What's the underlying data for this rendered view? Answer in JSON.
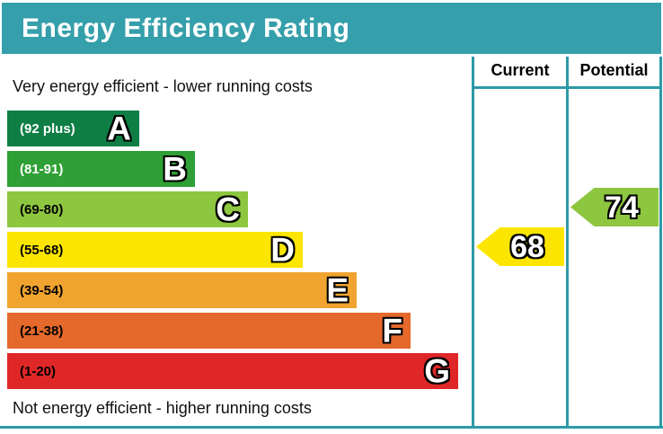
{
  "title": "Energy Efficiency Rating",
  "header": {
    "current": "Current",
    "potential": "Potential"
  },
  "captions": {
    "top": "Very energy efficient - lower running costs",
    "bottom": "Not energy efficient - higher running costs"
  },
  "bands": [
    {
      "letter": "A",
      "range": "(92 plus)",
      "min": 92,
      "max": 100,
      "color": "#0f7e45"
    },
    {
      "letter": "B",
      "range": "(81-91)",
      "min": 81,
      "max": 91,
      "color": "#2fa036"
    },
    {
      "letter": "C",
      "range": "(69-80)",
      "min": 69,
      "max": 80,
      "color": "#8dc63f"
    },
    {
      "letter": "D",
      "range": "(55-68)",
      "min": 55,
      "max": 68,
      "color": "#fce500"
    },
    {
      "letter": "E",
      "range": "(39-54)",
      "min": 39,
      "max": 54,
      "color": "#f0a42f"
    },
    {
      "letter": "F",
      "range": "(21-38)",
      "min": 21,
      "max": 38,
      "color": "#e4692b"
    },
    {
      "letter": "G",
      "range": "(1-20)",
      "min": 1,
      "max": 20,
      "color": "#e02728"
    }
  ],
  "ratings": {
    "current": {
      "value": "68",
      "band": "D",
      "color": "#fce500"
    },
    "potential": {
      "value": "74",
      "band": "C",
      "color": "#8dc63f"
    }
  },
  "colors": {
    "accent_teal": "#359fab",
    "table_line_teal": "#2e9aa7",
    "title_text": "#ffffff"
  },
  "chart_data": {
    "type": "bar",
    "title": "Energy Efficiency Rating",
    "categories": [
      "A",
      "B",
      "C",
      "D",
      "E",
      "F",
      "G"
    ],
    "band_ranges": [
      "92 plus",
      "81-91",
      "69-80",
      "55-68",
      "39-54",
      "21-38",
      "1-20"
    ],
    "band_colors": [
      "#0f7e45",
      "#2fa036",
      "#8dc63f",
      "#fce500",
      "#f0a42f",
      "#e4692b",
      "#e02728"
    ],
    "orientation": "horizontal",
    "series": [
      {
        "name": "Current",
        "value": 68,
        "band": "D"
      },
      {
        "name": "Potential",
        "value": 74,
        "band": "C"
      }
    ],
    "annotations": [
      "Very energy efficient - lower running costs",
      "Not energy efficient - higher running costs"
    ],
    "legend_position": "right-columns",
    "grid": false
  }
}
